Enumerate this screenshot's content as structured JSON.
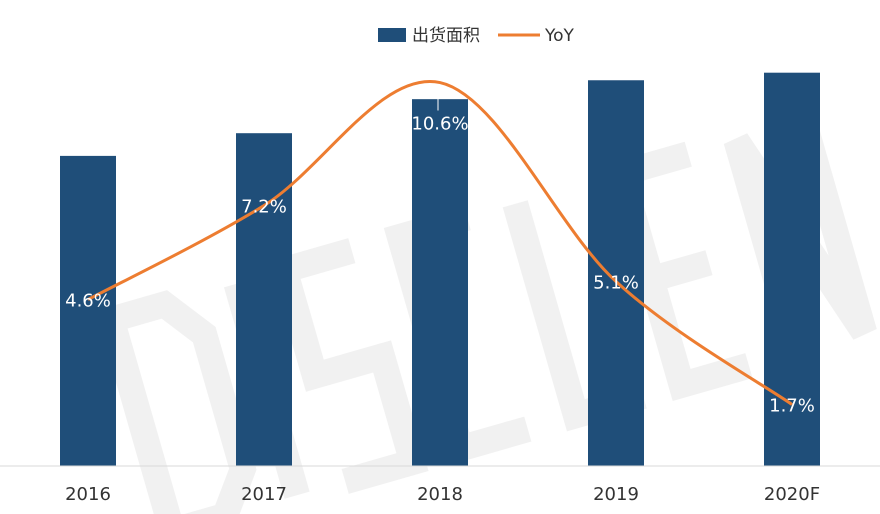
{
  "chart_data": {
    "type": "bar",
    "categories": [
      "2016",
      "2017",
      "2018",
      "2019",
      "2020F"
    ],
    "series": [
      {
        "name": "出货面积",
        "type": "bar",
        "values": [
          82,
          88,
          97,
          102,
          104
        ],
        "color": "#1f4e79"
      },
      {
        "name": "YoY",
        "type": "line",
        "values": [
          4.6,
          7.2,
          10.6,
          5.1,
          1.7
        ],
        "labels": [
          "4.6%",
          "7.2%",
          "10.6%",
          "5.1%",
          "1.7%"
        ],
        "color": "#ed7d31"
      }
    ],
    "ylim": [
      0,
      110
    ],
    "y2lim": [
      0,
      11.5
    ],
    "legend": "top-center",
    "grid": false,
    "watermark_color": "#e6e6e6"
  }
}
